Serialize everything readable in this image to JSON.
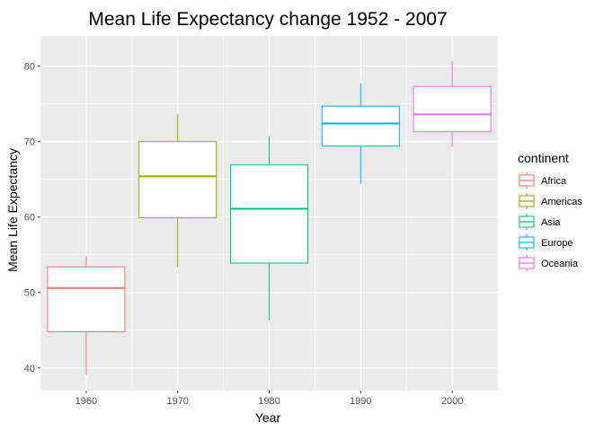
{
  "chart_data": {
    "type": "boxplot",
    "title": "Mean Life Expectancy change 1952 - 2007",
    "xlabel": "Year",
    "ylabel": "Mean Life Expectancy",
    "xlim": [
      1955,
      2005
    ],
    "ylim": [
      37,
      84
    ],
    "x_ticks": [
      1960,
      1970,
      1980,
      1990,
      2000
    ],
    "y_ticks": [
      40,
      50,
      60,
      70,
      80
    ],
    "grid": true,
    "legend": {
      "title": "continent",
      "position": "right"
    },
    "series": [
      {
        "name": "Africa",
        "color": "#F8766D",
        "x": 1960,
        "min": 39.1,
        "q1": 44.8,
        "median": 50.6,
        "q3": 53.4,
        "max": 54.8
      },
      {
        "name": "Americas",
        "color": "#A3A500",
        "x": 1970,
        "min": 53.3,
        "q1": 59.9,
        "median": 65.4,
        "q3": 70.0,
        "max": 73.6
      },
      {
        "name": "Asia",
        "color": "#00BF7D",
        "x": 1980,
        "min": 46.3,
        "q1": 53.9,
        "median": 61.1,
        "q3": 66.9,
        "max": 70.7
      },
      {
        "name": "Europe",
        "color": "#00B0F6",
        "x": 1990,
        "min": 64.4,
        "q1": 69.4,
        "median": 72.4,
        "q3": 74.7,
        "max": 77.7
      },
      {
        "name": "Oceania",
        "color": "#E76BF3",
        "x": 2000,
        "min": 69.3,
        "q1": 71.3,
        "median": 73.6,
        "q3": 77.3,
        "max": 80.7
      }
    ]
  }
}
